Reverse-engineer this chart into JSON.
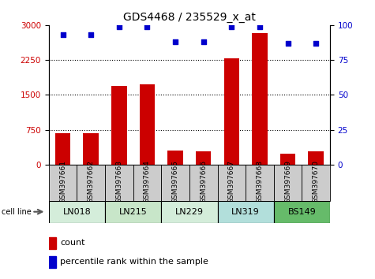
{
  "title": "GDS4468 / 235529_x_at",
  "samples": [
    "GSM397661",
    "GSM397662",
    "GSM397663",
    "GSM397664",
    "GSM397665",
    "GSM397666",
    "GSM397667",
    "GSM397668",
    "GSM397669",
    "GSM397670"
  ],
  "counts": [
    680,
    680,
    1700,
    1720,
    310,
    290,
    2280,
    2820,
    230,
    290
  ],
  "percentiles": [
    93,
    93,
    99,
    99,
    88,
    88,
    99,
    99,
    87,
    87
  ],
  "cell_lines": [
    {
      "label": "LN018",
      "start": 0,
      "end": 2,
      "color": "#d4edda"
    },
    {
      "label": "LN215",
      "start": 2,
      "end": 4,
      "color": "#c8e6c9"
    },
    {
      "label": "LN229",
      "start": 4,
      "end": 6,
      "color": "#d4edda"
    },
    {
      "label": "LN319",
      "start": 6,
      "end": 8,
      "color": "#b2dfdb"
    },
    {
      "label": "BS149",
      "start": 8,
      "end": 10,
      "color": "#66bb6a"
    }
  ],
  "bar_color": "#cc0000",
  "dot_color": "#0000cc",
  "ylim_left": [
    0,
    3000
  ],
  "ylim_right": [
    0,
    100
  ],
  "yticks_left": [
    0,
    750,
    1500,
    2250,
    3000
  ],
  "yticks_right": [
    0,
    25,
    50,
    75,
    100
  ],
  "grid_lines": [
    750,
    1500,
    2250
  ],
  "tick_label_color_left": "#cc0000",
  "tick_label_color_right": "#0000cc",
  "sample_bg_color": "#cccccc",
  "legend_count_color": "#cc0000",
  "legend_pct_color": "#0000cc"
}
